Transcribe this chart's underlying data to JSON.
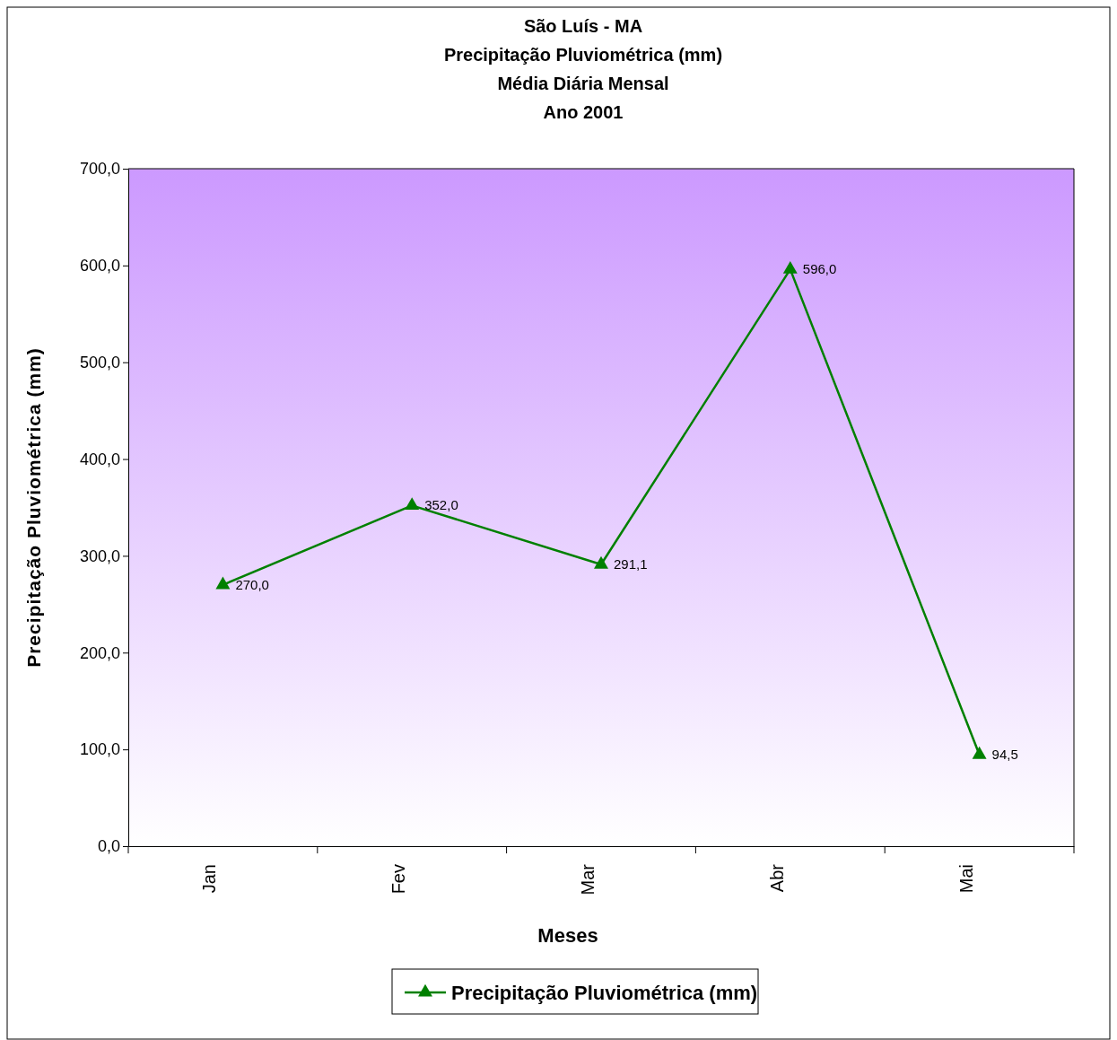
{
  "chart_data": {
    "type": "line",
    "title": "São  Luís - MA\nPrecipitação Pluviométrica (mm)\nMédia Diária Mensal\nAno 2001",
    "xlabel": "Meses",
    "ylabel": "Precipitação Pluviométrica (mm)",
    "categories": [
      "Jan",
      "Fev",
      "Mar",
      "Abr",
      "Mai"
    ],
    "series": [
      {
        "name": "Precipitação Pluviométrica (mm)",
        "color": "#008000",
        "values": [
          270.0,
          352.0,
          291.1,
          596.0,
          94.5
        ],
        "value_labels": [
          "270,0",
          "352,0",
          "291,1",
          "596,0",
          "94,5"
        ]
      }
    ],
    "ylim": [
      0,
      700
    ],
    "yticks": [
      {
        "value": 0,
        "label": "0,0"
      },
      {
        "value": 100,
        "label": "100,0"
      },
      {
        "value": 200,
        "label": "200,0"
      },
      {
        "value": 300,
        "label": "300,0"
      },
      {
        "value": 400,
        "label": "400,0"
      },
      {
        "value": 500,
        "label": "500,0"
      },
      {
        "value": 600,
        "label": "600,0"
      },
      {
        "value": 700,
        "label": "700,0"
      }
    ],
    "grid": false,
    "legend": "bottom",
    "marker": "triangle",
    "line_style": "solid"
  }
}
